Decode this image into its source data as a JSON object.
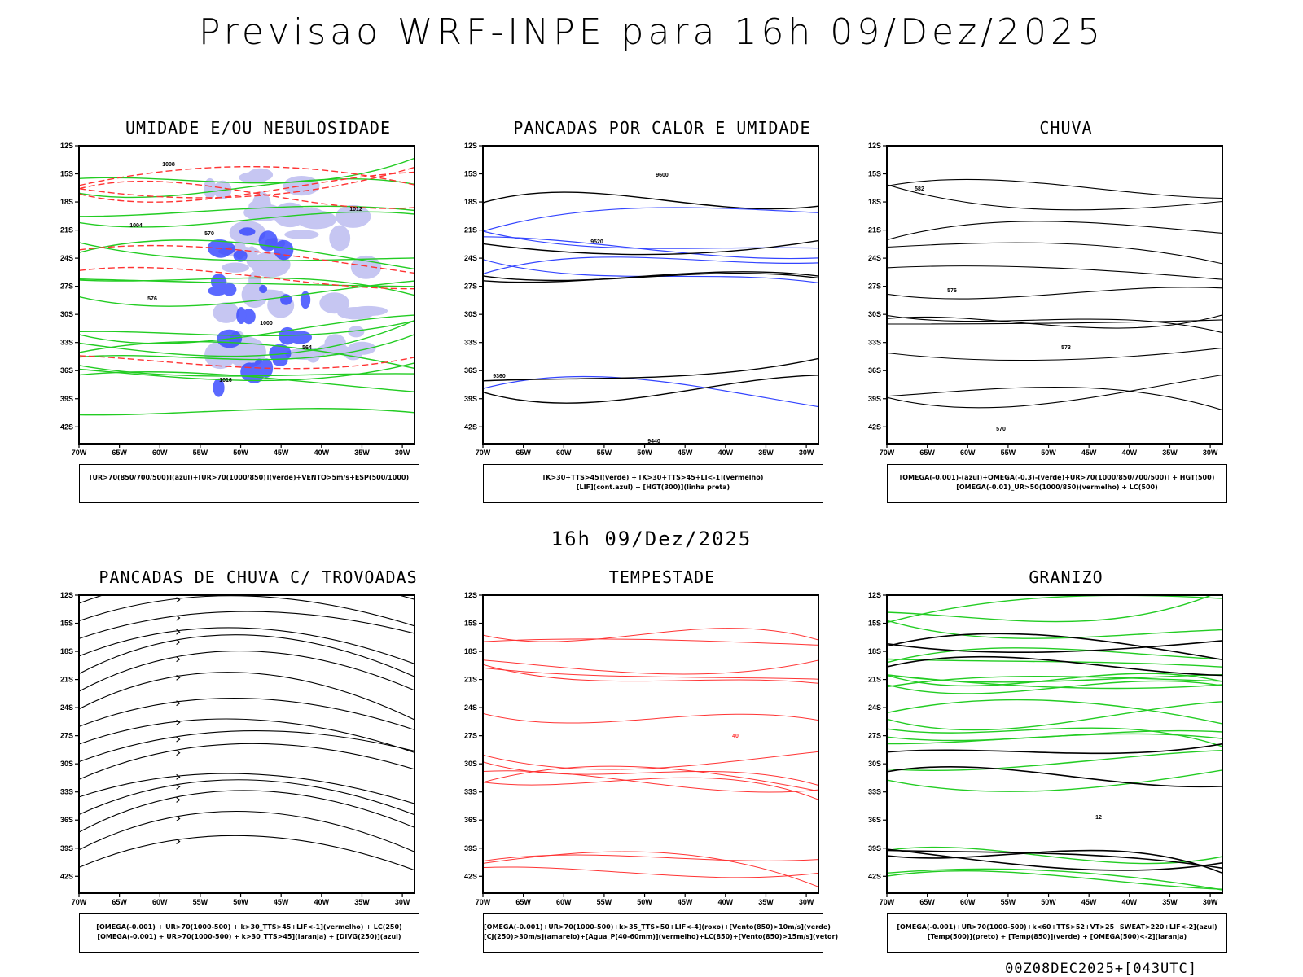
{
  "main_title": "Previsao WRF-INPE  para 16h 09/Dez/2025",
  "mid_title": "16h 09/Dez/2025",
  "footer": "00Z08DEC2025+[043UTC]",
  "colors": {
    "green": "#22cc22",
    "red": "#ff3333",
    "blue": "#3344ff",
    "lightblue": "#b8b8f0",
    "darkteal": "#2f5f55",
    "orange": "#ee8822",
    "yellow": "#dddd33",
    "black": "#000000"
  },
  "chart_data": [
    {
      "type": "map",
      "title": "UMIDADE E/OU NEBULOSIDADE",
      "legend": [
        "[UR>70(850/700/500)](azul)+[UR>70(1000/850)](verde)+VENTO>5m/s+ESP(500/1000)"
      ],
      "xticks": [
        "70W",
        "65W",
        "60W",
        "55W",
        "50W",
        "45W",
        "40W",
        "35W",
        "30W"
      ],
      "yticks": [
        "12S",
        "15S",
        "18S",
        "21S",
        "24S",
        "27S",
        "30S",
        "33S",
        "36S",
        "39S",
        "42S"
      ],
      "contour_labels": [
        "1008",
        "1004",
        "1000",
        "1012",
        "1016",
        "576",
        "570",
        "564"
      ]
    },
    {
      "type": "map",
      "title": "PANCADAS POR CALOR E UMIDADE",
      "legend": [
        "[K>30+TTS>45](verde) + [K>30+TTS>45+LI<-1](vermelho)",
        "[LIF](cont.azul) + [HGT(300)](linha preta)"
      ],
      "xticks": [
        "70W",
        "65W",
        "60W",
        "55W",
        "50W",
        "45W",
        "40W",
        "35W",
        "30W"
      ],
      "yticks": [
        "12S",
        "15S",
        "18S",
        "21S",
        "24S",
        "27S",
        "30S",
        "33S",
        "36S",
        "39S",
        "42S"
      ],
      "contour_labels": [
        "9600",
        "9520",
        "9440",
        "9360"
      ]
    },
    {
      "type": "map",
      "title": "CHUVA",
      "legend": [
        "[OMEGA(-0.001)-(azul)+OMEGA(-0.3)-(verde)+UR>70(1000/850/700/500)] + HGT(500)",
        "[OMEGA(-0.01)_UR>50(1000/850)(vermelho) + LC(500)"
      ],
      "xticks": [
        "70W",
        "65W",
        "60W",
        "55W",
        "50W",
        "45W",
        "40W",
        "35W",
        "30W"
      ],
      "yticks": [
        "12S",
        "15S",
        "18S",
        "21S",
        "24S",
        "27S",
        "30S",
        "33S",
        "36S",
        "39S",
        "42S"
      ],
      "contour_labels": [
        "582",
        "576",
        "573",
        "570"
      ]
    },
    {
      "type": "map",
      "title": "PANCADAS DE CHUVA C/ TROVOADAS",
      "legend": [
        "[OMEGA(-0.001) + UR>70(1000-500) + k>30_TTS>45+LIF<-1](vermelho) + LC(250)",
        "[OMEGA(-0.001) + UR>70(1000-500) + k>30_TTS>45](laranja) + [DIVG(250)](azul)"
      ],
      "xticks": [
        "70W",
        "65W",
        "60W",
        "55W",
        "50W",
        "45W",
        "40W",
        "35W",
        "30W"
      ],
      "yticks": [
        "12S",
        "15S",
        "18S",
        "21S",
        "24S",
        "27S",
        "30S",
        "33S",
        "36S",
        "39S",
        "42S"
      ],
      "contour_labels": []
    },
    {
      "type": "map",
      "title": "TEMPESTADE",
      "legend": [
        "[OMEGA(-0.001)+UR>70(1000-500)+k>35_TTS>50+LIF<-4](roxo)+[Vento(850)>10m/s](verde)",
        "[CJ(250)>30m/s](amarelo)+[Agua_P(40-60mm)](vermelho)+LC(850)+[Vento(850)>15m/s](vetor)"
      ],
      "xticks": [
        "70W",
        "65W",
        "60W",
        "55W",
        "50W",
        "45W",
        "40W",
        "35W",
        "30W"
      ],
      "yticks": [
        "12S",
        "15S",
        "18S",
        "21S",
        "24S",
        "27S",
        "30S",
        "33S",
        "36S",
        "39S",
        "42S"
      ],
      "contour_labels": [
        "40"
      ]
    },
    {
      "type": "map",
      "title": "GRANIZO",
      "legend": [
        "[OMEGA(-0.001)+UR>70(1000-500)+k<60+TTS>52+VT>25+SWEAT>220+LIF<-2](azul)",
        "[Temp(500)](preto) + [Temp(850)](verde) + [OMEGA(500)<-2](laranja)"
      ],
      "xticks": [
        "70W",
        "65W",
        "60W",
        "55W",
        "50W",
        "45W",
        "40W",
        "35W",
        "30W"
      ],
      "yticks": [
        "12S",
        "15S",
        "18S",
        "21S",
        "24S",
        "27S",
        "30S",
        "33S",
        "36S",
        "39S",
        "42S"
      ],
      "contour_labels": [
        "12"
      ]
    }
  ]
}
